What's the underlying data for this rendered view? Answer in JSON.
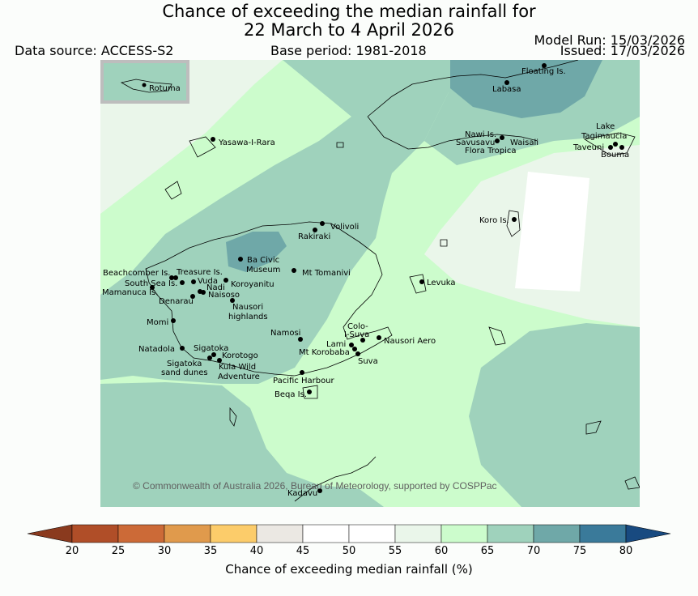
{
  "header": {
    "title_line1": "Chance of exceeding the median rainfall for",
    "title_line2": "22 March to 4 April 2026",
    "data_source": "Data source: ACCESS-S2",
    "base_period": "Base period: 1981-2018",
    "model_run": "Model Run: 15/03/2026",
    "issued": "Issued: 17/03/2026"
  },
  "map": {
    "inset_label": "Rotuma",
    "copyright": "© Commonwealth of Australia 2026, Bureau of Meteorology, supported by COSPPac",
    "places": [
      "Floating Is.",
      "Labasa",
      "Yasawa-I-Rara",
      "Nawi Is.",
      "Savusavu",
      "Waisali",
      "Flora Tropica",
      "Lake",
      "Tagimaucia",
      "Taveuni",
      "Bouma",
      "Koro Is.",
      "Volivoli",
      "Rakiraki",
      "Ba Civic",
      "Museum",
      "Mt Tomanivi",
      "Beachcomber Is.",
      "Treasure Is.",
      "South Sea Is.",
      "Vuda",
      "Koroyanitu",
      "Mamanuca Is.",
      "Nadi",
      "Naisoso",
      "Denarau",
      "Nausori",
      "highlands",
      "Levuka",
      "Momi",
      "Colo-",
      "I-Suva",
      "Namosi",
      "Nausori Aero",
      "Lami",
      "Mt Korobaba",
      "Suva",
      "Natadola",
      "Sigatoka",
      "Korotogo",
      "Sigatoka",
      "sand dunes",
      "Kula Wild",
      "Adventure",
      "Pacific Harbour",
      "Beqa Is.",
      "Kadavu"
    ]
  },
  "colorbar": {
    "label": "Chance of exceeding median rainfall (%)",
    "ticks": [
      "20",
      "25",
      "30",
      "35",
      "40",
      "45",
      "50",
      "55",
      "60",
      "65",
      "70",
      "75",
      "80"
    ],
    "colors": {
      "below_20": "#8a3a1e",
      "20_25": "#b04e28",
      "25_30": "#cc6a37",
      "30_35": "#e09a4c",
      "35_40": "#fccc6a",
      "40_45": "#ebe8e3",
      "45_50": "#ffffff",
      "50_55": "#ffffff",
      "55_60": "#eaf6ea",
      "60_65": "#ccfccc",
      "65_70": "#9fd2bc",
      "70_75": "#6fa8a8",
      "75_80": "#3a7a9a",
      "above_80": "#184a80"
    }
  }
}
